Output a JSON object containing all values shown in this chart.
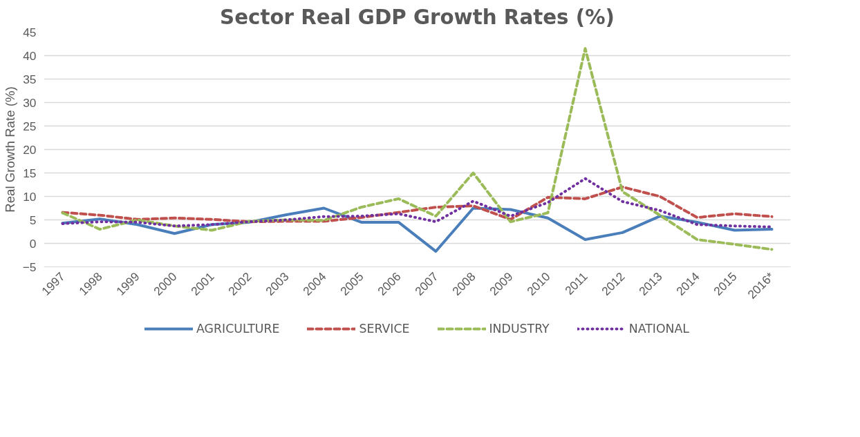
{
  "chart_data": {
    "type": "line",
    "title": "Sector Real GDP Growth Rates (%)",
    "ylabel": "Real Growth Rate (%)",
    "categories": [
      "1997",
      "1998",
      "1999",
      "2000",
      "2001",
      "2002",
      "2003",
      "2004",
      "2005",
      "2006",
      "2007",
      "2008",
      "2009",
      "2010",
      "2011",
      "2012",
      "2013",
      "2014",
      "2015",
      "2016*"
    ],
    "series": [
      {
        "name": "AGRICULTURE",
        "color": "#4a7ebb",
        "line_style": "solid",
        "values": [
          4.3,
          5.2,
          4.0,
          2.1,
          4.0,
          4.5,
          6.1,
          7.5,
          4.5,
          4.5,
          -1.7,
          7.5,
          7.2,
          5.4,
          0.8,
          2.3,
          5.8,
          4.5,
          2.8,
          3.0
        ]
      },
      {
        "name": "SERVICE",
        "color": "#c0504d",
        "line_style": "dashed",
        "values": [
          6.6,
          6.0,
          5.1,
          5.4,
          5.1,
          4.6,
          4.7,
          4.7,
          5.5,
          6.6,
          7.7,
          8.0,
          5.1,
          9.8,
          9.5,
          12.0,
          10.0,
          5.5,
          6.3,
          5.7
        ]
      },
      {
        "name": "INDUSTRY",
        "color": "#9bbb59",
        "line_style": "dashed",
        "values": [
          6.5,
          3.0,
          5.0,
          3.7,
          2.8,
          4.7,
          5.0,
          4.9,
          7.7,
          9.5,
          5.8,
          15.0,
          4.6,
          6.5,
          41.5,
          11.0,
          6.0,
          0.8,
          -0.2,
          -1.3
        ]
      },
      {
        "name": "NATIONAL",
        "color": "#7030a0",
        "line_style": "dotted",
        "values": [
          4.2,
          4.6,
          4.5,
          3.7,
          4.0,
          4.6,
          5.0,
          5.7,
          5.8,
          6.3,
          4.6,
          9.0,
          5.8,
          8.7,
          13.8,
          8.9,
          7.0,
          4.0,
          3.7,
          3.5
        ]
      }
    ],
    "ylim": [
      -5,
      45
    ],
    "yticks": [
      -5,
      0,
      5,
      10,
      15,
      20,
      25,
      30,
      35,
      40,
      45
    ],
    "grid": "y",
    "legend": "bottom"
  }
}
